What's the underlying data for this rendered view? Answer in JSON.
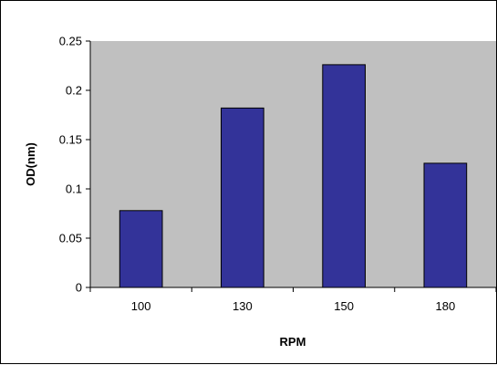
{
  "chart_data": {
    "type": "bar",
    "title": "",
    "xlabel": "RPM",
    "ylabel": "OD(nm)",
    "categories": [
      "100",
      "130",
      "150",
      "180"
    ],
    "values": [
      0.078,
      0.182,
      0.226,
      0.126
    ],
    "ylim": [
      0,
      0.25
    ],
    "yticks": [
      "0",
      "0.05",
      "0.1",
      "0.15",
      "0.2",
      "0.25"
    ],
    "grid": false,
    "legend": "none",
    "colors": {
      "plot_area": "#c0c0c0",
      "bar_fill": "#333399",
      "bar_stroke": "#000000",
      "axis": "#000000",
      "page_background": "#ffffff"
    }
  }
}
